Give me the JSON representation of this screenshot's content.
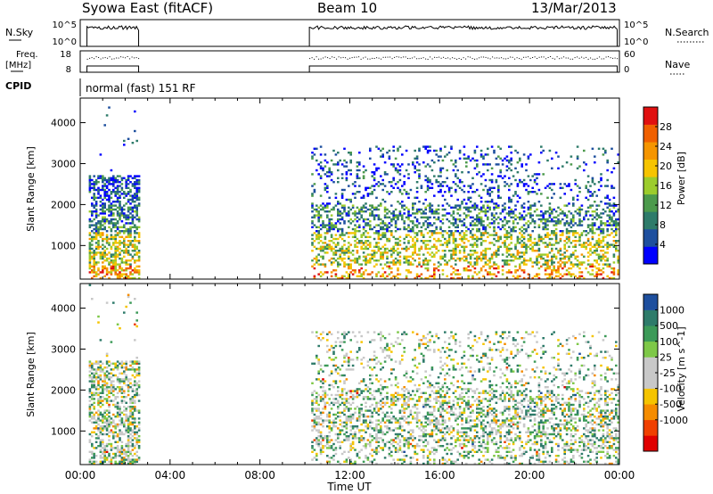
{
  "header": {
    "station": "Syowa East (fitACF)",
    "beam": "Beam 10",
    "date": "13/Mar/2013"
  },
  "strip_labels": {
    "nsky": "N.Sky",
    "nsky_hi": "10^5",
    "nsky_lo": "10^0",
    "nsearch": "N.Search",
    "nsearch_hi": "10^5",
    "nsearch_lo": "10^0",
    "freq": "Freq.",
    "freq_unit": "[MHz]",
    "freq_hi": "18",
    "freq_lo": "8",
    "nave": "Nave",
    "nave_hi": "60",
    "nave_lo": "0",
    "cpid": "CPID",
    "mode": "normal (fast) 151 RF"
  },
  "colors": {
    "power_scale": [
      "#0000ff",
      "#1e4f9e",
      "#2e7b6a",
      "#4c9a4c",
      "#9ccc2c",
      "#f6c400",
      "#f59500",
      "#f06000",
      "#e01010"
    ],
    "velocity_scale": [
      "#e00000",
      "#f04000",
      "#f58c00",
      "#f5c400",
      "#c8c8c8",
      "#c8c8c8",
      "#7ec848",
      "#3c9a58",
      "#2e7b6a",
      "#1e4f9e"
    ]
  },
  "chart_data": [
    {
      "type": "heatmap",
      "title": "",
      "xlabel": "Time UT",
      "ylabel": "Slant Range [km]",
      "x_ticks": [
        "00:00",
        "04:00",
        "08:00",
        "12:00",
        "16:00",
        "20:00",
        "00:00"
      ],
      "x_range_hours": [
        0,
        24
      ],
      "y_ticks": [
        1000,
        2000,
        3000,
        4000
      ],
      "ylim": [
        180,
        4600
      ],
      "colorbar_label": "Power [dB]",
      "colorbar_ticks": [
        4,
        8,
        12,
        16,
        20,
        24,
        28
      ],
      "colorbar_range": [
        0,
        32
      ],
      "data_intervals_hours": [
        [
          0.3,
          2.6
        ],
        [
          10.2,
          23.9
        ]
      ]
    },
    {
      "type": "heatmap",
      "title": "",
      "xlabel": "Time UT",
      "ylabel": "Slant Range [km]",
      "x_ticks": [
        "00:00",
        "04:00",
        "08:00",
        "12:00",
        "16:00",
        "20:00",
        "00:00"
      ],
      "x_range_hours": [
        0,
        24
      ],
      "y_ticks": [
        1000,
        2000,
        3000,
        4000
      ],
      "ylim": [
        180,
        4600
      ],
      "colorbar_label": "Velocity [m s^-1]",
      "colorbar_ticks": [
        1000,
        500,
        100,
        25,
        -25,
        -100,
        -500,
        -1000
      ],
      "data_intervals_hours": [
        [
          0.3,
          2.6
        ],
        [
          10.2,
          23.9
        ]
      ]
    }
  ]
}
